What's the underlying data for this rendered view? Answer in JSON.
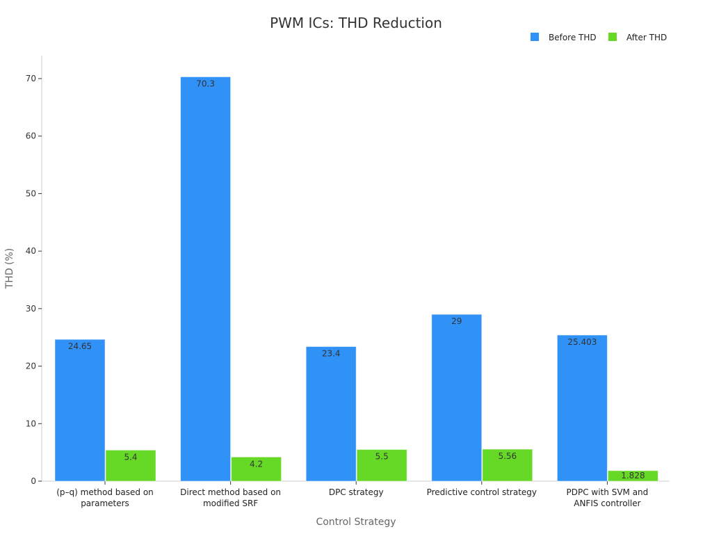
{
  "chart_data": {
    "type": "bar",
    "title": "PWM ICs: THD Reduction",
    "xlabel": "Control Strategy",
    "ylabel": "THD (%)",
    "ylim": [
      0,
      74
    ],
    "yticks": [
      0,
      10,
      20,
      30,
      40,
      50,
      60,
      70
    ],
    "grid": false,
    "legend_position": "top-right",
    "categories": [
      [
        "(p–q) method based on",
        "parameters"
      ],
      [
        "Direct method based on",
        "modified SRF"
      ],
      [
        "DPC strategy"
      ],
      [
        "Predictive control strategy"
      ],
      [
        "PDPC with SVM and",
        "ANFIS controller"
      ]
    ],
    "series": [
      {
        "name": "Before THD",
        "color": "#3091f7",
        "values": [
          24.65,
          70.3,
          23.4,
          29,
          25.403
        ],
        "labels": [
          "24.65",
          "70.3",
          "23.4",
          "29",
          "25.403"
        ]
      },
      {
        "name": "After THD",
        "color": "#66d926",
        "values": [
          5.4,
          4.2,
          5.5,
          5.56,
          1.828
        ],
        "labels": [
          "5.4",
          "4.2",
          "5.5",
          "5.56",
          "1.828"
        ]
      }
    ]
  }
}
